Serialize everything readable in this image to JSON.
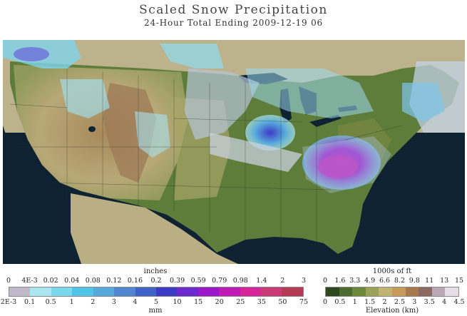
{
  "title": "Scaled Snow Precipitation",
  "subtitle": "24-Hour Total Ending 2009-12-19 06",
  "snow_legend": {
    "unit_top": "inches",
    "unit_bottom": "mm",
    "top_ticks": [
      "0",
      "4E-3",
      "0.02",
      "0.04",
      "0.08",
      "0.12",
      "0.16",
      "0.2",
      "0.39",
      "0.59",
      "0.79",
      "0.98",
      "1.4",
      "2",
      "3"
    ],
    "bottom_ticks": [
      "2E-3",
      "0.1",
      "0.5",
      "1",
      "2",
      "3",
      "4",
      "5",
      "10",
      "15",
      "20",
      "25",
      "35",
      "50",
      "75"
    ],
    "colors": [
      "#bfb9c9",
      "#a9e6f0",
      "#79d8ec",
      "#4fc4e6",
      "#57a9dc",
      "#4f86cf",
      "#3f62c8",
      "#3d3bc6",
      "#6b2ad0",
      "#9b19c9",
      "#c21ab4",
      "#d8259a",
      "#cc3a76",
      "#b43a55"
    ]
  },
  "elev_legend": {
    "unit_top": "1000s of ft",
    "unit_bottom": "Elevation (km)",
    "top_ticks": [
      "0",
      "1.6",
      "3.3",
      "4.9",
      "6.6",
      "8.2",
      "9.8",
      "11",
      "13",
      "15"
    ],
    "bottom_ticks": [
      "0",
      "0.5",
      "1",
      "1.5",
      "2",
      "2.5",
      "3",
      "3.5",
      "4",
      "4.5"
    ],
    "colors": [
      "#2d4a1f",
      "#4c6b2e",
      "#6d8a3c",
      "#9aa25a",
      "#c0b373",
      "#c79a5a",
      "#a77a4e",
      "#8c6a62",
      "#b9a9b7",
      "#e6dde6"
    ]
  }
}
